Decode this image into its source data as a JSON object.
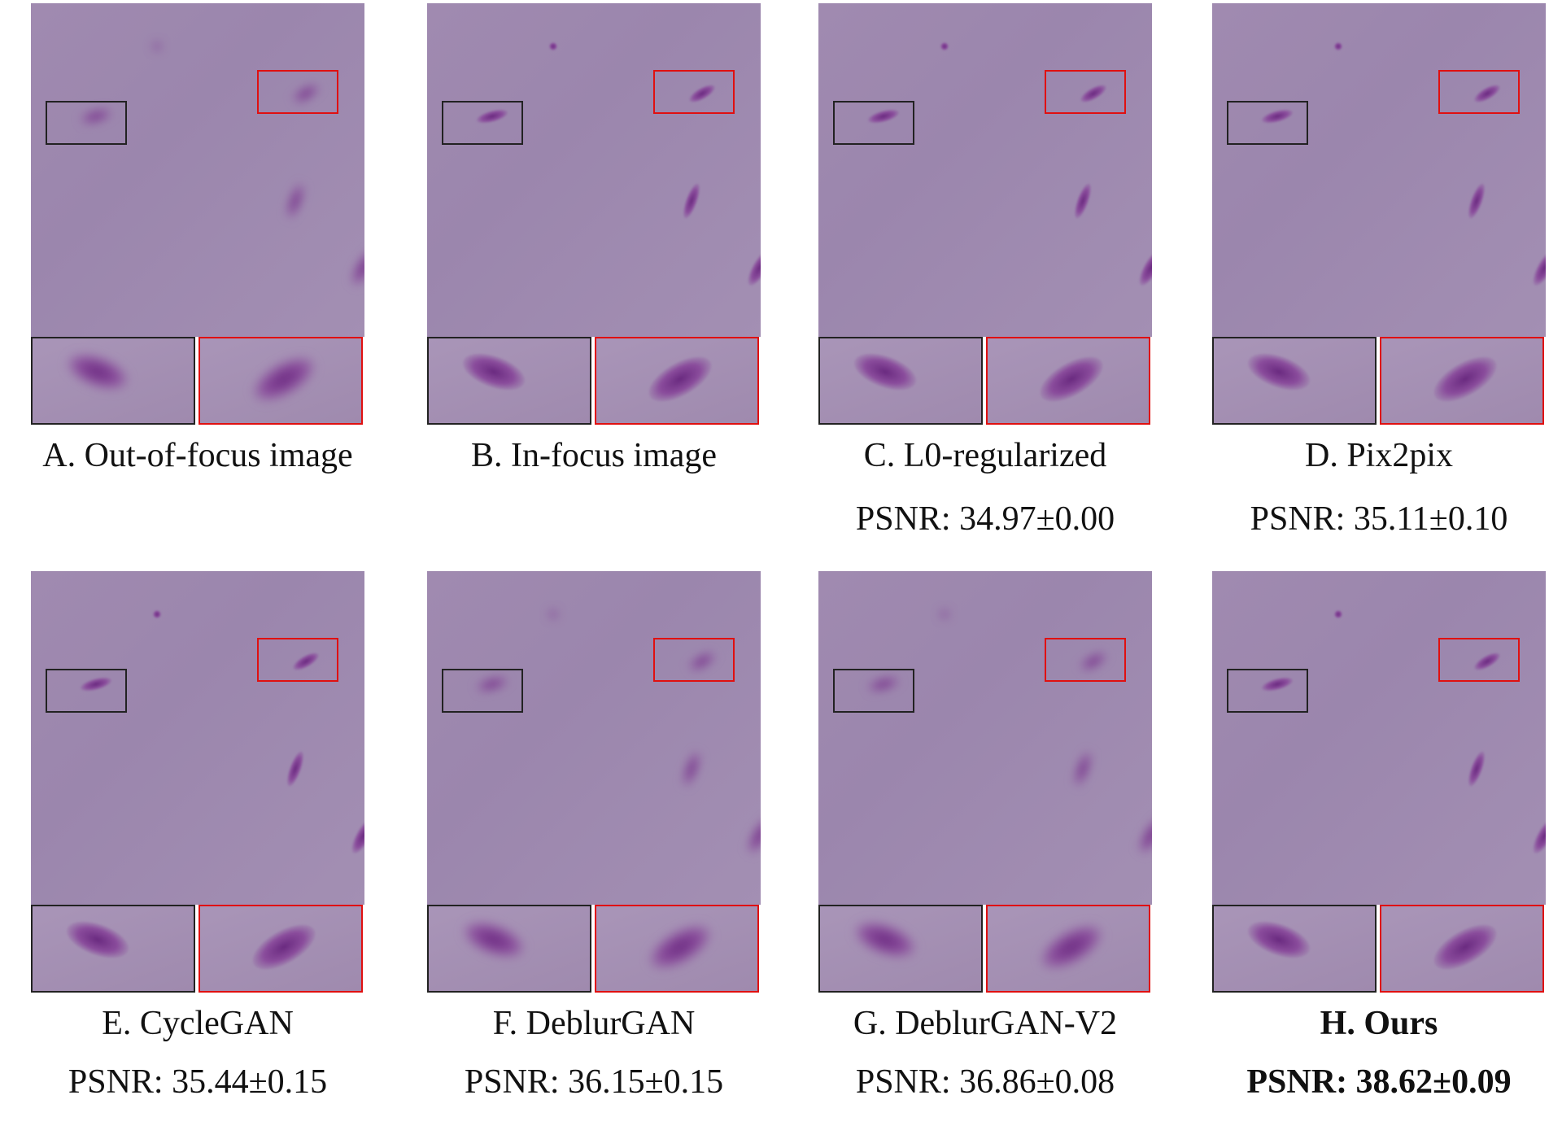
{
  "panels": [
    {
      "letter": "A",
      "caption": "A. Out-of-focus image",
      "psnr": "",
      "bold": false,
      "style": "blur"
    },
    {
      "letter": "B",
      "caption": "B. In-focus image",
      "psnr": "",
      "bold": false,
      "style": "sharp"
    },
    {
      "letter": "C",
      "caption": "C. L0-regularized",
      "psnr": "PSNR: 34.97±0.00",
      "bold": false,
      "style": "sharp"
    },
    {
      "letter": "D",
      "caption": "D. Pix2pix",
      "psnr": "PSNR: 35.11±0.10",
      "bold": false,
      "style": "sharp"
    },
    {
      "letter": "E",
      "caption": "E. CycleGAN",
      "psnr": "PSNR: 35.44±0.15",
      "bold": false,
      "style": "sharp"
    },
    {
      "letter": "F",
      "caption": "F. DeblurGAN",
      "psnr": "PSNR: 36.15±0.15",
      "bold": false,
      "style": "blur"
    },
    {
      "letter": "G",
      "caption": "G. DeblurGAN-V2",
      "psnr": "PSNR: 36.86±0.08",
      "bold": false,
      "style": "blur"
    },
    {
      "letter": "H",
      "caption": "H. Ours",
      "psnr": "PSNR: 38.62±0.09",
      "bold": true,
      "style": "sharp"
    }
  ],
  "colors": {
    "roi_black": "#222222",
    "roi_red": "#e01010",
    "background": "#a08ab0"
  }
}
